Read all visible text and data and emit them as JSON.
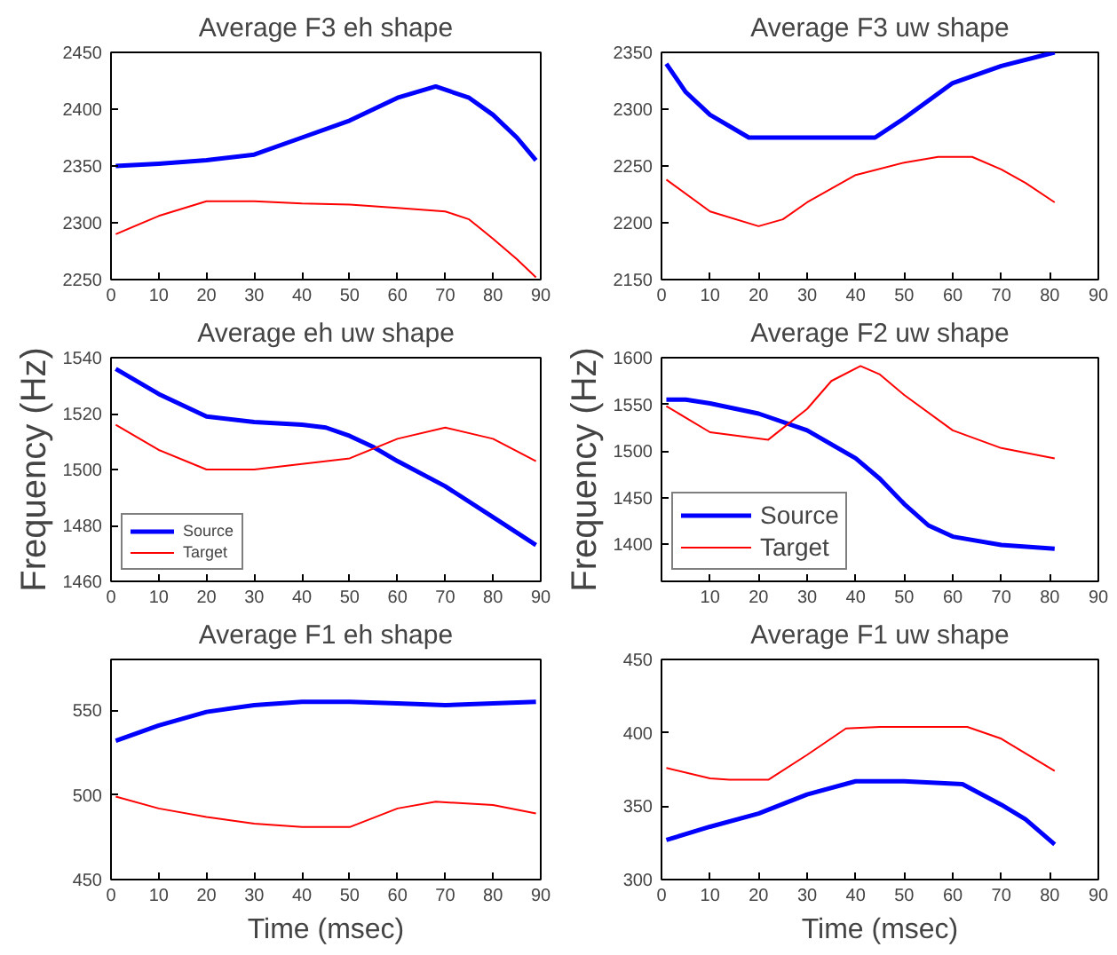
{
  "chart_data": [
    {
      "type": "line",
      "title": "Average F3 eh shape",
      "xlim": [
        0,
        90
      ],
      "xticks": [
        0,
        10,
        20,
        30,
        40,
        50,
        60,
        70,
        80,
        90
      ],
      "ylim": [
        2250,
        2450
      ],
      "yticks": [
        2250,
        2300,
        2350,
        2400,
        2450
      ],
      "grid": false,
      "legend": false,
      "marker": "none",
      "line_style": "solid",
      "series": [
        {
          "color": "#0000ff",
          "x": [
            1,
            10,
            20,
            30,
            40,
            50,
            60,
            68,
            75,
            80,
            85,
            89
          ],
          "values": [
            2350,
            2352,
            2355,
            2360,
            2375,
            2390,
            2410,
            2420,
            2410,
            2395,
            2375,
            2355
          ]
        },
        {
          "color": "#ff0000",
          "x": [
            1,
            10,
            20,
            30,
            40,
            50,
            60,
            70,
            75,
            80,
            85,
            89
          ],
          "values": [
            2290,
            2306,
            2319,
            2319,
            2317,
            2316,
            2313,
            2310,
            2303,
            2286,
            2268,
            2252
          ]
        }
      ]
    },
    {
      "type": "line",
      "title": "Average eh uw shape",
      "ylabel": "Frequency (Hz)",
      "xlim": [
        0,
        90
      ],
      "xticks": [
        0,
        10,
        20,
        30,
        40,
        50,
        60,
        70,
        80,
        90
      ],
      "ylim": [
        1460,
        1540
      ],
      "yticks": [
        1460,
        1480,
        1500,
        1520,
        1540
      ],
      "grid": false,
      "legend": "bottom left",
      "marker": "none",
      "line_style": "solid",
      "series": [
        {
          "name": "Source",
          "color": "#0000ff",
          "x": [
            1,
            10,
            20,
            30,
            40,
            45,
            50,
            55,
            60,
            70,
            80,
            89
          ],
          "values": [
            1536,
            1527,
            1519,
            1517,
            1516,
            1515,
            1512,
            1508,
            1503,
            1494,
            1483,
            1473
          ]
        },
        {
          "name": "Target",
          "color": "#ff0000",
          "x": [
            1,
            10,
            20,
            30,
            40,
            50,
            60,
            70,
            80,
            89
          ],
          "values": [
            1516,
            1507,
            1500,
            1500,
            1502,
            1504,
            1511,
            1515,
            1511,
            1503
          ]
        }
      ]
    },
    {
      "type": "line",
      "title": "Average F1 eh shape",
      "xlabel": "Time (msec)",
      "xlim": [
        0,
        90
      ],
      "xticks": [
        0,
        10,
        20,
        30,
        40,
        50,
        60,
        70,
        80,
        90
      ],
      "ylim": [
        450,
        580
      ],
      "yticks": [
        450,
        500,
        550
      ],
      "grid": false,
      "legend": false,
      "marker": "none",
      "line_style": "solid",
      "series": [
        {
          "color": "#0000ff",
          "x": [
            1,
            10,
            20,
            30,
            40,
            50,
            60,
            70,
            80,
            89
          ],
          "values": [
            532,
            541,
            549,
            553,
            555,
            555,
            554,
            553,
            554,
            555
          ]
        },
        {
          "color": "#ff0000",
          "x": [
            1,
            10,
            20,
            30,
            40,
            50,
            60,
            68,
            80,
            89
          ],
          "values": [
            499,
            492,
            487,
            483,
            481,
            481,
            492,
            496,
            494,
            489
          ]
        }
      ]
    },
    {
      "type": "line",
      "title": "Average F3 uw shape",
      "xlim": [
        0,
        90
      ],
      "xticks": [
        0,
        10,
        20,
        30,
        40,
        50,
        60,
        70,
        80,
        90
      ],
      "ylim": [
        2150,
        2350
      ],
      "yticks": [
        2150,
        2200,
        2250,
        2300,
        2350
      ],
      "grid": false,
      "legend": false,
      "marker": "none",
      "line_style": "solid",
      "series": [
        {
          "color": "#0000ff",
          "x": [
            1,
            5,
            10,
            18,
            30,
            44,
            50,
            60,
            70,
            81
          ],
          "values": [
            2340,
            2315,
            2295,
            2275,
            2275,
            2275,
            2292,
            2323,
            2338,
            2350
          ]
        },
        {
          "color": "#ff0000",
          "x": [
            1,
            10,
            20,
            25,
            30,
            40,
            50,
            57,
            64,
            70,
            75,
            81
          ],
          "values": [
            2238,
            2210,
            2197,
            2203,
            2218,
            2242,
            2253,
            2258,
            2258,
            2247,
            2235,
            2218
          ]
        }
      ]
    },
    {
      "type": "line",
      "title": "Average F2 uw shape",
      "ylabel": "Frequency (Hz)",
      "xlim": [
        0,
        90
      ],
      "xticks": [
        10,
        20,
        30,
        40,
        50,
        60,
        70,
        80,
        90
      ],
      "ylim": [
        1360,
        1600
      ],
      "yticks": [
        1400,
        1450,
        1500,
        1550,
        1600
      ],
      "grid": false,
      "legend": "bottom left",
      "marker": "none",
      "line_style": "solid",
      "series": [
        {
          "name": "Source",
          "color": "#0000ff",
          "x": [
            1,
            5,
            10,
            20,
            30,
            40,
            45,
            50,
            55,
            60,
            70,
            81
          ],
          "values": [
            1555,
            1555,
            1551,
            1540,
            1522,
            1492,
            1470,
            1443,
            1420,
            1408,
            1399,
            1395
          ]
        },
        {
          "name": "Target",
          "color": "#ff0000",
          "x": [
            1,
            10,
            22,
            30,
            35,
            41,
            45,
            50,
            60,
            70,
            81
          ],
          "values": [
            1548,
            1520,
            1512,
            1545,
            1575,
            1591,
            1582,
            1560,
            1522,
            1503,
            1492
          ]
        }
      ]
    },
    {
      "type": "line",
      "title": "Average F1 uw shape",
      "xlabel": "Time (msec)",
      "xlim": [
        0,
        90
      ],
      "xticks": [
        0,
        10,
        20,
        30,
        40,
        50,
        60,
        70,
        80,
        90
      ],
      "ylim": [
        300,
        450
      ],
      "yticks": [
        300,
        350,
        400,
        450
      ],
      "grid": false,
      "legend": false,
      "marker": "none",
      "line_style": "solid",
      "series": [
        {
          "color": "#0000ff",
          "x": [
            1,
            10,
            20,
            30,
            40,
            50,
            62,
            70,
            75,
            81
          ],
          "values": [
            327,
            336,
            345,
            358,
            367,
            367,
            365,
            351,
            341,
            324
          ]
        },
        {
          "color": "#ff0000",
          "x": [
            1,
            10,
            14,
            22,
            30,
            38,
            45,
            55,
            63,
            70,
            81
          ],
          "values": [
            376,
            369,
            368,
            368,
            385,
            403,
            404,
            404,
            404,
            396,
            374
          ]
        }
      ]
    }
  ]
}
